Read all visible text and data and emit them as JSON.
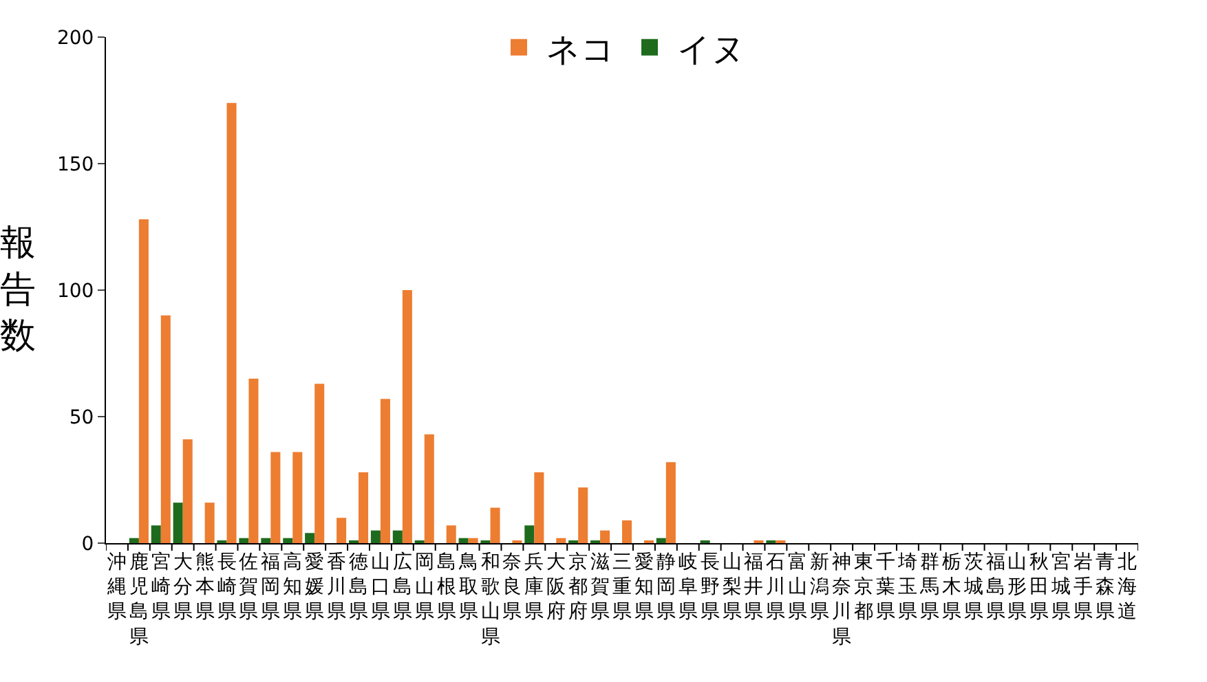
{
  "chart_data": {
    "type": "bar",
    "ylabel": "報告数",
    "categories": [
      "沖縄県",
      "鹿児島県",
      "宮崎県",
      "大分県",
      "熊本県",
      "長崎県",
      "佐賀県",
      "福岡県",
      "高知県",
      "愛媛県",
      "香川県",
      "徳島県",
      "山口県",
      "広島県",
      "岡山県",
      "島根県",
      "鳥取県",
      "和歌山県",
      "奈良県",
      "兵庫県",
      "大阪府",
      "京都府",
      "滋賀県",
      "三重県",
      "愛知県",
      "静岡県",
      "岐阜県",
      "長野県",
      "山梨県",
      "福井県",
      "石川県",
      "富山県",
      "新潟県",
      "神奈川県",
      "東京都",
      "千葉県",
      "埼玉県",
      "群馬県",
      "栃木県",
      "茨城県",
      "福島県",
      "山形県",
      "秋田県",
      "宮城県",
      "岩手県",
      "青森県",
      "北海道"
    ],
    "series": [
      {
        "name": "ネコ",
        "color": "#ed7d31",
        "values": [
          0,
          128,
          90,
          41,
          16,
          174,
          65,
          36,
          36,
          63,
          10,
          28,
          57,
          100,
          43,
          7,
          2,
          14,
          1,
          28,
          2,
          22,
          5,
          9,
          1,
          32,
          0,
          0,
          0,
          1,
          1,
          0,
          0,
          0,
          0,
          0,
          0,
          0,
          0,
          0,
          0,
          0,
          0,
          0,
          0,
          0,
          0
        ]
      },
      {
        "name": "イヌ",
        "color": "#1e6b1e",
        "values": [
          0,
          2,
          7,
          16,
          0,
          1,
          2,
          2,
          2,
          4,
          0,
          1,
          5,
          5,
          1,
          0,
          2,
          1,
          0,
          7,
          0,
          1,
          1,
          0,
          0,
          2,
          0,
          1,
          0,
          0,
          1,
          0,
          0,
          0,
          0,
          0,
          0,
          0,
          0,
          0,
          0,
          0,
          0,
          0,
          0,
          0,
          0
        ]
      }
    ],
    "ylim": [
      0,
      200
    ],
    "yticks": [
      0,
      50,
      100,
      150,
      200
    ],
    "grid": false,
    "legend": "top"
  }
}
